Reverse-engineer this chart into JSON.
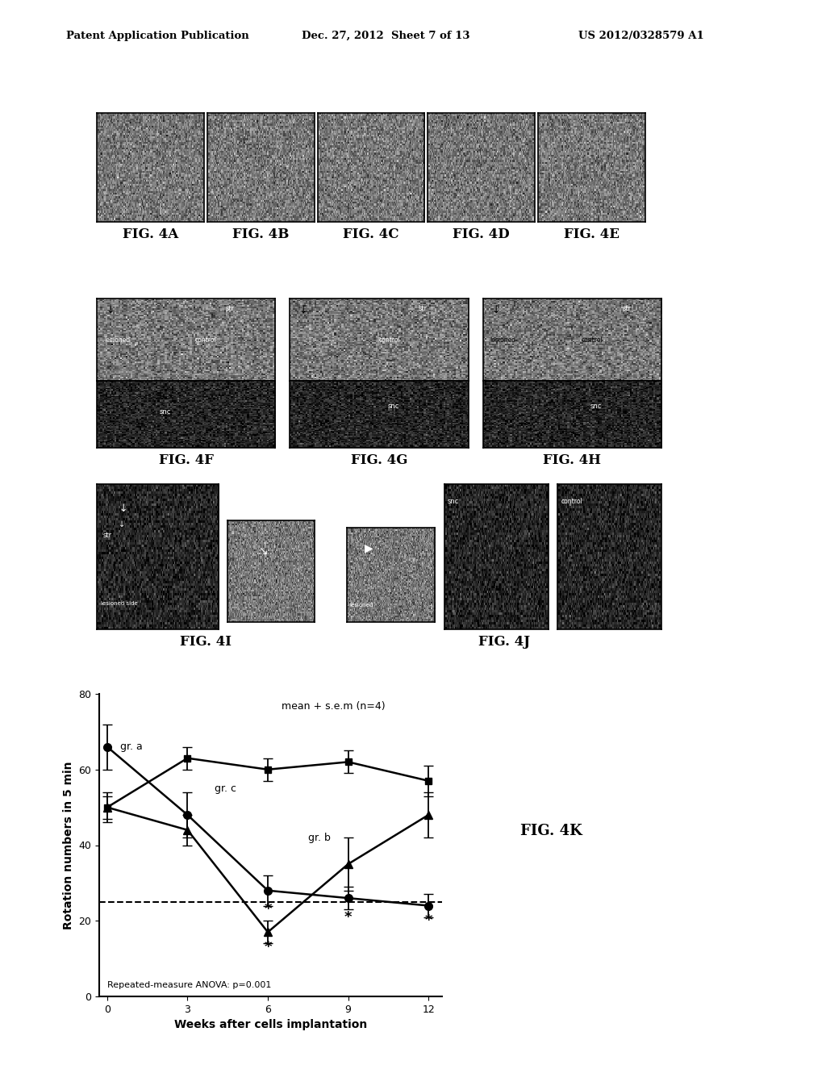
{
  "header_left": "Patent Application Publication",
  "header_mid": "Dec. 27, 2012  Sheet 7 of 13",
  "header_right": "US 2012/0328579 A1",
  "fig_labels_row1": [
    "FIG. 4A",
    "FIG. 4B",
    "FIG. 4C",
    "FIG. 4D",
    "FIG. 4E"
  ],
  "fig_labels_row2": [
    "FIG. 4F",
    "FIG. 4G",
    "FIG. 4H"
  ],
  "fig_labels_row3": [
    "FIG. 4I",
    "FIG. 4J"
  ],
  "fig_label_4k": "FIG. 4K",
  "graph": {
    "title": "mean + s.e.m (n=4)",
    "xlabel": "Weeks after cells implantation",
    "ylabel": "Rotation numbers in 5 min",
    "ylim": [
      0,
      80
    ],
    "xticks": [
      0,
      3,
      6,
      9,
      12
    ],
    "yticks": [
      0,
      20,
      40,
      60,
      80
    ],
    "dashed_line_y": 25,
    "annotation": "Repeated-measure ANOVA: p=0.001",
    "gr_a_x": [
      0,
      3,
      6,
      9,
      12
    ],
    "gr_a_y": [
      66,
      48,
      28,
      26,
      24
    ],
    "gr_a_yerr": [
      6,
      6,
      4,
      3,
      3
    ],
    "gr_b_x": [
      0,
      3,
      6,
      9,
      12
    ],
    "gr_b_y": [
      50,
      44,
      17,
      35,
      48
    ],
    "gr_b_yerr": [
      4,
      4,
      3,
      7,
      6
    ],
    "gr_c_x": [
      0,
      3,
      6,
      9,
      12
    ],
    "gr_c_y": [
      50,
      63,
      60,
      62,
      57
    ],
    "gr_c_yerr": [
      3,
      3,
      3,
      3,
      4
    ],
    "label_a": "gr. a",
    "label_b": "gr. b",
    "label_c": "gr. c"
  },
  "bg_color": "#ffffff",
  "text_color": "#000000"
}
